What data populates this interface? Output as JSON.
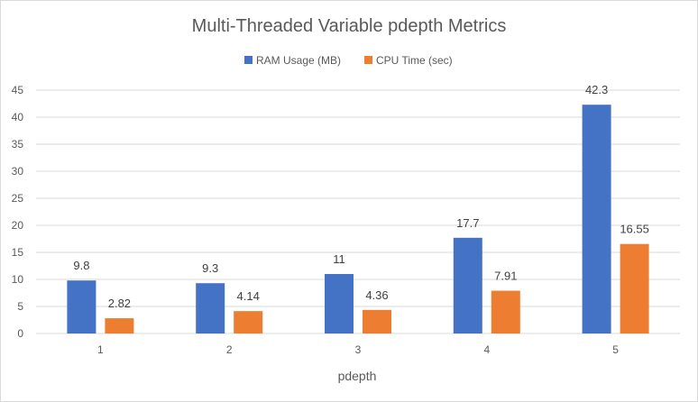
{
  "chart_data": {
    "type": "bar",
    "title": "Multi-Threaded Variable pdepth Metrics",
    "xlabel": "pdepth",
    "ylabel": "",
    "categories": [
      "1",
      "2",
      "3",
      "4",
      "5"
    ],
    "series": [
      {
        "name": "RAM Usage (MB)",
        "color": "#4472c4",
        "values": [
          9.8,
          9.3,
          11,
          17.7,
          42.3
        ],
        "labels": [
          "9.8",
          "9.3",
          "11",
          "17.7",
          "42.3"
        ]
      },
      {
        "name": "CPU Time (sec)",
        "color": "#ed7d31",
        "values": [
          2.82,
          4.14,
          4.36,
          7.91,
          16.55
        ],
        "labels": [
          "2.82",
          "4.14",
          "4.36",
          "7.91",
          "16.55"
        ]
      }
    ],
    "ylim": [
      0,
      45
    ],
    "ytick_labels": [
      "0",
      "5",
      "10",
      "15",
      "20",
      "25",
      "30",
      "35",
      "40",
      "45"
    ],
    "grid": true,
    "legend_position": "top"
  }
}
